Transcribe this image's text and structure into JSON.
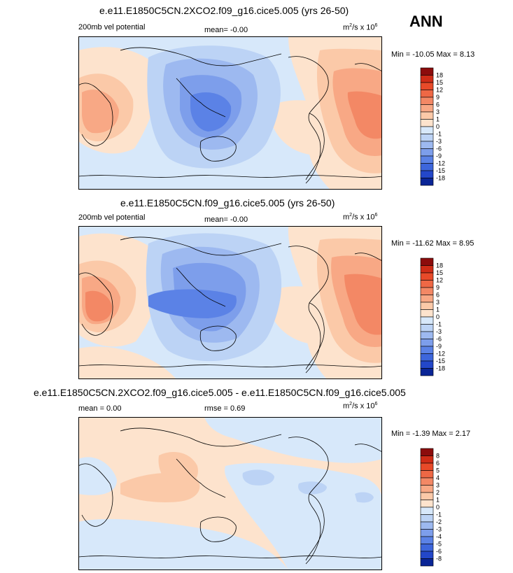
{
  "season": "ANN",
  "units_base": "m",
  "units_sup1": "2",
  "units_mid": "/s x 10",
  "units_sup2": "6",
  "colors": {
    "pos": [
      "#fde3cd",
      "#fbc9a8",
      "#f8a885",
      "#f38865",
      "#ee6845",
      "#e84a29",
      "#cf2c17",
      "#8c0c0c"
    ],
    "neg": [
      "#d7e8fa",
      "#bcd3f5",
      "#9db9f0",
      "#7d9eeb",
      "#5b82e6",
      "#3d66dc",
      "#2347c9",
      "#0a2596"
    ],
    "land": "#000000"
  },
  "panels": [
    {
      "title": "e.e11.E1850C5CN.2XCO2.f09_g16.cice5.005 (yrs 26-50)",
      "var_label": "200mb vel potential",
      "mean_label": "mean=  -0.00",
      "minmax": "Min = -10.05 Max =  8.13",
      "levels": [
        "18",
        "15",
        "12",
        "9",
        "6",
        "3",
        "1",
        "0",
        "-1",
        "-3",
        "-6",
        "-9",
        "-12",
        "-15",
        "-18"
      ]
    },
    {
      "title": "e.e11.E1850C5CN.f09_g16.cice5.005 (yrs 26-50)",
      "var_label": "200mb vel potential",
      "mean_label": "mean=  -0.00",
      "minmax": "Min = -11.62 Max =  8.95",
      "levels": [
        "18",
        "15",
        "12",
        "9",
        "6",
        "3",
        "1",
        "0",
        "-1",
        "-3",
        "-6",
        "-9",
        "-12",
        "-15",
        "-18"
      ]
    },
    {
      "title": "e.e11.E1850C5CN.2XCO2.f09_g16.cice5.005 - e.e11.E1850C5CN.f09_g16.cice5.005",
      "mean_label": "mean =   0.00",
      "rmse_label": "rmse =   0.69",
      "minmax": "Min =  -1.39 Max =  2.17",
      "levels": [
        "8",
        "6",
        "5",
        "4",
        "3",
        "2",
        "1",
        "0",
        "-1",
        "-2",
        "-3",
        "-4",
        "-5",
        "-6",
        "-8"
      ]
    }
  ]
}
